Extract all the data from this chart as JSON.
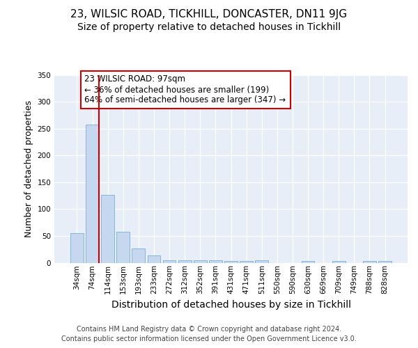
{
  "title1": "23, WILSIC ROAD, TICKHILL, DONCASTER, DN11 9JG",
  "title2": "Size of property relative to detached houses in Tickhill",
  "xlabel": "Distribution of detached houses by size in Tickhill",
  "ylabel": "Number of detached properties",
  "categories": [
    "34sqm",
    "74sqm",
    "114sqm",
    "153sqm",
    "193sqm",
    "233sqm",
    "272sqm",
    "312sqm",
    "352sqm",
    "391sqm",
    "431sqm",
    "471sqm",
    "511sqm",
    "550sqm",
    "590sqm",
    "630sqm",
    "669sqm",
    "709sqm",
    "749sqm",
    "788sqm",
    "828sqm"
  ],
  "values": [
    55,
    257,
    127,
    58,
    26,
    13,
    5,
    5,
    5,
    5,
    3,
    3,
    5,
    0,
    0,
    3,
    0,
    3,
    0,
    3,
    3
  ],
  "bar_color": "#c5d8f0",
  "bar_edge_color": "#7aadd4",
  "vline_color": "#cc0000",
  "annotation_text": "23 WILSIC ROAD: 97sqm\n← 36% of detached houses are smaller (199)\n64% of semi-detached houses are larger (347) →",
  "annotation_box_color": "#ffffff",
  "annotation_box_edge": "#cc0000",
  "ylim": [
    0,
    350
  ],
  "yticks": [
    0,
    50,
    100,
    150,
    200,
    250,
    300,
    350
  ],
  "footnote": "Contains HM Land Registry data © Crown copyright and database right 2024.\nContains public sector information licensed under the Open Government Licence v3.0.",
  "plot_bg_color": "#e8eef8",
  "title1_fontsize": 11,
  "title2_fontsize": 10,
  "xlabel_fontsize": 10,
  "ylabel_fontsize": 9,
  "tick_fontsize": 7.5,
  "annotation_fontsize": 8.5,
  "footnote_fontsize": 7
}
